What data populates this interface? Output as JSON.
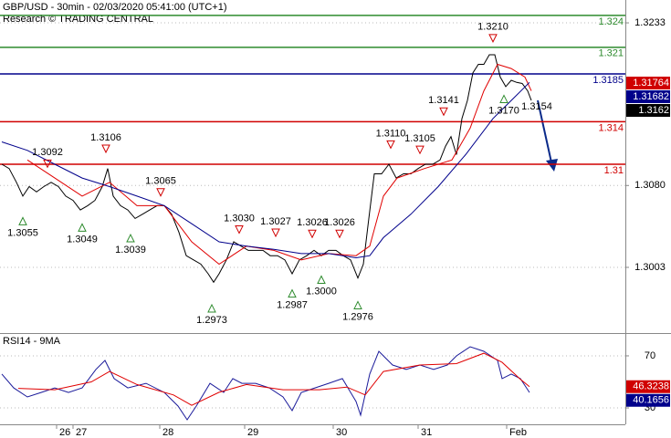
{
  "chart_data": [
    {
      "type": "line",
      "title": "GBP/USD - 30min - 02/03/2020 05:41:00 (UTC+1)",
      "subtitle": "Research © TRADING CENTRAL",
      "xlim": [
        0,
        342.5
      ],
      "ylim": [
        1.29412,
        1.32545
      ],
      "yticks": [
        1.3003,
        {
          "value": 1.308,
          "label": "1.3080"
        },
        1.3233
      ],
      "grid": true,
      "series": [
        {
          "color": "#000000",
          "x": [
            1,
            5,
            9,
            12.5,
            16,
            20,
            24,
            28,
            32,
            36,
            40,
            44,
            48,
            52,
            56,
            59,
            62,
            66,
            70,
            74,
            78,
            82,
            86,
            90,
            94,
            98,
            102,
            106,
            110,
            114,
            117,
            120,
            124,
            128,
            132,
            136,
            140,
            144,
            148,
            152,
            156,
            160,
            164,
            168,
            172,
            176,
            180,
            184,
            188,
            192,
            196,
            199,
            202,
            205,
            209,
            213,
            217,
            221,
            225,
            229,
            233,
            237,
            241,
            244,
            247,
            250,
            253,
            256,
            259,
            262,
            265,
            268,
            271,
            274,
            277,
            280,
            283,
            286,
            289,
            291
          ],
          "values": [
            1.31,
            1.3096,
            1.3083,
            1.307,
            1.3079,
            1.3074,
            1.3079,
            1.3083,
            1.3079,
            1.307,
            1.3066,
            1.3057,
            1.3061,
            1.3066,
            1.3079,
            1.3096,
            1.307,
            1.3061,
            1.3057,
            1.3049,
            1.3053,
            1.3057,
            1.3061,
            1.3061,
            1.3053,
            1.3036,
            1.3014,
            1.301,
            1.3006,
            1.2997,
            1.2989,
            1.2997,
            1.301,
            1.3027,
            1.3023,
            1.3019,
            1.3019,
            1.3019,
            1.3014,
            1.3014,
            1.301,
            1.2997,
            1.301,
            1.3014,
            1.3019,
            1.3014,
            1.3019,
            1.3019,
            1.3014,
            1.301,
            1.2993,
            1.3006,
            1.3049,
            1.3091,
            1.3091,
            1.31,
            1.3087,
            1.3091,
            1.3091,
            1.3096,
            1.31,
            1.31,
            1.3104,
            1.3117,
            1.3126,
            1.3109,
            1.3143,
            1.316,
            1.3186,
            1.3194,
            1.3194,
            1.3203,
            1.3203,
            1.3182,
            1.3173,
            1.3179,
            1.3177,
            1.3176,
            1.3169,
            1.316
          ]
        },
        {
          "color": "#e00000",
          "x": [
            15,
            30,
            45,
            60,
            75,
            90,
            105,
            120,
            135,
            150,
            165,
            180,
            195,
            202.5,
            210,
            217.5,
            232.5,
            247.5,
            257.5,
            265,
            272.5,
            280,
            287.5,
            291
          ],
          "values": [
            1.3104,
            1.3087,
            1.307,
            1.3083,
            1.3061,
            1.3061,
            1.3027,
            1.3006,
            1.3023,
            1.3019,
            1.301,
            1.3016,
            1.3014,
            1.3023,
            1.307,
            1.3087,
            1.3096,
            1.3104,
            1.3134,
            1.3169,
            1.3194,
            1.319,
            1.3182,
            1.3169
          ]
        },
        {
          "color": "#00008b",
          "x": [
            1,
            15,
            30,
            45,
            60,
            75,
            90,
            105,
            120,
            135,
            150,
            165,
            180,
            195,
            202.5,
            210,
            225,
            240,
            255,
            270,
            280,
            290
          ],
          "values": [
            1.3121,
            1.3113,
            1.31,
            1.3087,
            1.3079,
            1.307,
            1.3061,
            1.3044,
            1.3027,
            1.3023,
            1.302,
            1.3016,
            1.3016,
            1.3012,
            1.3014,
            1.3031,
            1.3053,
            1.3079,
            1.3109,
            1.3143,
            1.316,
            1.3177
          ]
        }
      ],
      "levels": [
        {
          "value": 1.324,
          "color": "#2e8b2e"
        },
        {
          "value": 1.321,
          "color": "#2e8b2e"
        },
        {
          "value": 1.3185,
          "color": "#00008b"
        },
        {
          "value": 1.314,
          "color": "#d00000"
        },
        {
          "value": 1.31,
          "color": "#d00000"
        }
      ],
      "annotations": [
        {
          "x": 26,
          "value": 1.3092,
          "kind": "high"
        },
        {
          "x": 12.5,
          "value": 1.3055,
          "kind": "low"
        },
        {
          "x": 58,
          "value": 1.3106,
          "kind": "high"
        },
        {
          "x": 45,
          "value": 1.3049,
          "kind": "low"
        },
        {
          "x": 88,
          "value": 1.3065,
          "kind": "high"
        },
        {
          "x": 71.5,
          "value": 1.3039,
          "kind": "low"
        },
        {
          "x": 131,
          "value": 1.303,
          "label": "1.3030",
          "kind": "high"
        },
        {
          "x": 116,
          "value": 1.2973,
          "kind": "low"
        },
        {
          "x": 151,
          "value": 1.3027,
          "kind": "high"
        },
        {
          "x": 160,
          "value": 1.2987,
          "kind": "low"
        },
        {
          "x": 171,
          "value": 1.3026,
          "kind": "high"
        },
        {
          "x": 176,
          "value": 1.3,
          "label": "1.3000",
          "kind": "low"
        },
        {
          "x": 186,
          "value": 1.3026,
          "kind": "high"
        },
        {
          "x": 196,
          "value": 1.2976,
          "kind": "low"
        },
        {
          "x": 214,
          "value": 1.311,
          "label": "1.3110",
          "kind": "high"
        },
        {
          "x": 230,
          "value": 1.3105,
          "kind": "high"
        },
        {
          "x": 243,
          "value": 1.3141,
          "kind": "high"
        },
        {
          "x": 270,
          "value": 1.321,
          "label": "1.3210",
          "kind": "high"
        },
        {
          "x": 276,
          "value": 1.317,
          "label": "1.3170",
          "kind": "low"
        },
        {
          "x": 294,
          "value": 1.3154,
          "kind": "label"
        }
      ],
      "last_values": [
        {
          "value": 1.31764,
          "color": "#d00000"
        },
        {
          "value": 1.31682,
          "color": "#00008b"
        },
        {
          "value": 1.3162,
          "color": "#000000"
        }
      ]
    },
    {
      "type": "line",
      "title": "RSI14 - 9MA",
      "xlim": [
        0,
        342.5
      ],
      "ylim": [
        17.4,
        85.4
      ],
      "yticks": [
        30,
        70
      ],
      "grid": true,
      "xticks": [
        {
          "value": 31,
          "label": "26"
        },
        {
          "value": 40,
          "label": "27"
        },
        {
          "value": 87.5,
          "label": "28"
        },
        {
          "value": 134,
          "label": "29"
        },
        {
          "value": 182.5,
          "label": "30"
        },
        {
          "value": 229,
          "label": "31"
        },
        {
          "value": 277.5,
          "label": "Feb"
        }
      ],
      "series": [
        {
          "color": "#1a1a9a",
          "x": [
            1,
            7.5,
            15,
            22.5,
            30,
            37.5,
            45,
            52.5,
            57.5,
            62.5,
            70,
            80,
            90,
            97.5,
            102.5,
            107.5,
            115,
            122.5,
            127.5,
            132.5,
            140,
            147.5,
            155,
            160,
            165,
            172.5,
            180,
            187.5,
            195,
            197.5,
            202.5,
            207.5,
            215,
            222.5,
            230,
            237.5,
            245,
            250,
            257.5,
            265,
            272.5,
            275,
            280,
            285,
            290
          ],
          "values": [
            56.0,
            45.4,
            38.4,
            41.9,
            45.4,
            41.9,
            45.4,
            59.5,
            66.5,
            52.5,
            45.4,
            48.9,
            41.9,
            31.4,
            20.9,
            31.4,
            48.9,
            41.9,
            52.5,
            48.9,
            48.9,
            45.4,
            38.4,
            27.9,
            41.9,
            45.4,
            48.9,
            52.5,
            34.9,
            24.4,
            56.0,
            73.5,
            63.0,
            59.5,
            63.0,
            59.5,
            63.0,
            70.0,
            77.0,
            73.5,
            66.5,
            52.5,
            56.0,
            52.5,
            41.9
          ]
        },
        {
          "color": "#e00000",
          "x": [
            10,
            30,
            50,
            60,
            75,
            95,
            105,
            120,
            135,
            155,
            175,
            190,
            200,
            210,
            230,
            250,
            265,
            275,
            285,
            290
          ],
          "values": [
            45,
            44,
            50,
            58,
            48,
            40,
            32,
            42,
            48,
            44,
            44,
            46,
            40,
            58,
            63,
            64,
            72,
            65,
            52,
            46.3
          ]
        }
      ],
      "last_values": [
        {
          "value": 46.3238,
          "color": "#d00000"
        },
        {
          "value": 40.1656,
          "color": "#00008b"
        }
      ]
    }
  ]
}
